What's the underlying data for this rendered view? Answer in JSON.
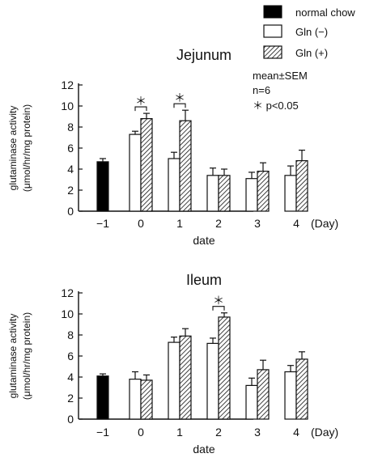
{
  "legend": {
    "items": [
      {
        "label": "normal chow",
        "fill": "#000000",
        "pattern": "solid"
      },
      {
        "label": "Gln (−)",
        "fill": "#ffffff",
        "pattern": "open"
      },
      {
        "label": "Gln (+)",
        "fill": "#ffffff",
        "pattern": "hatched"
      }
    ],
    "stats": [
      "mean±SEM",
      "n=6",
      "＊  p<0.05"
    ]
  },
  "colors": {
    "ink": "#111111",
    "solid": "#000000",
    "open": "#ffffff"
  },
  "chart_data": [
    {
      "type": "bar",
      "title": "Jejunum",
      "xlabel": "date",
      "ylabel": "glutaminase activity",
      "ylabel2": "(μmol/hr/mg protein)",
      "x_unit": "(Day)",
      "ylim": [
        0,
        12
      ],
      "yticks": [
        0,
        2,
        4,
        6,
        8,
        10,
        12
      ],
      "categories": [
        "−1",
        "0",
        "1",
        "2",
        "3",
        "4"
      ],
      "series": [
        {
          "name": "normal chow",
          "values": [
            4.7,
            null,
            null,
            null,
            null,
            null
          ],
          "errors": [
            0.3,
            null,
            null,
            null,
            null,
            null
          ]
        },
        {
          "name": "Gln (−)",
          "values": [
            null,
            7.3,
            5.0,
            3.4,
            3.1,
            3.4
          ],
          "errors": [
            null,
            0.3,
            0.6,
            0.7,
            0.6,
            0.9
          ]
        },
        {
          "name": "Gln (+)",
          "values": [
            null,
            8.8,
            8.6,
            3.4,
            3.8,
            4.8
          ],
          "errors": [
            null,
            0.5,
            1.0,
            0.6,
            0.8,
            1.0
          ]
        }
      ],
      "significance": [
        {
          "category_index": 1,
          "label": "＊"
        },
        {
          "category_index": 2,
          "label": "＊"
        }
      ]
    },
    {
      "type": "bar",
      "title": "Ileum",
      "xlabel": "date",
      "ylabel": "glutaminase activity",
      "ylabel2": "(μmol/hr/mg protein)",
      "x_unit": "(Day)",
      "ylim": [
        0,
        12
      ],
      "yticks": [
        0,
        2,
        4,
        6,
        8,
        10,
        12
      ],
      "categories": [
        "−1",
        "0",
        "1",
        "2",
        "3",
        "4"
      ],
      "series": [
        {
          "name": "normal chow",
          "values": [
            4.1,
            null,
            null,
            null,
            null,
            null
          ],
          "errors": [
            0.2,
            null,
            null,
            null,
            null,
            null
          ]
        },
        {
          "name": "Gln (−)",
          "values": [
            null,
            3.8,
            7.3,
            7.2,
            3.2,
            4.5
          ],
          "errors": [
            null,
            0.7,
            0.5,
            0.5,
            0.7,
            0.6
          ]
        },
        {
          "name": "Gln (+)",
          "values": [
            null,
            3.7,
            7.9,
            9.7,
            4.7,
            5.7
          ],
          "errors": [
            null,
            0.5,
            0.7,
            0.4,
            0.9,
            0.7
          ]
        }
      ],
      "significance": [
        {
          "category_index": 3,
          "label": "＊"
        }
      ]
    }
  ]
}
